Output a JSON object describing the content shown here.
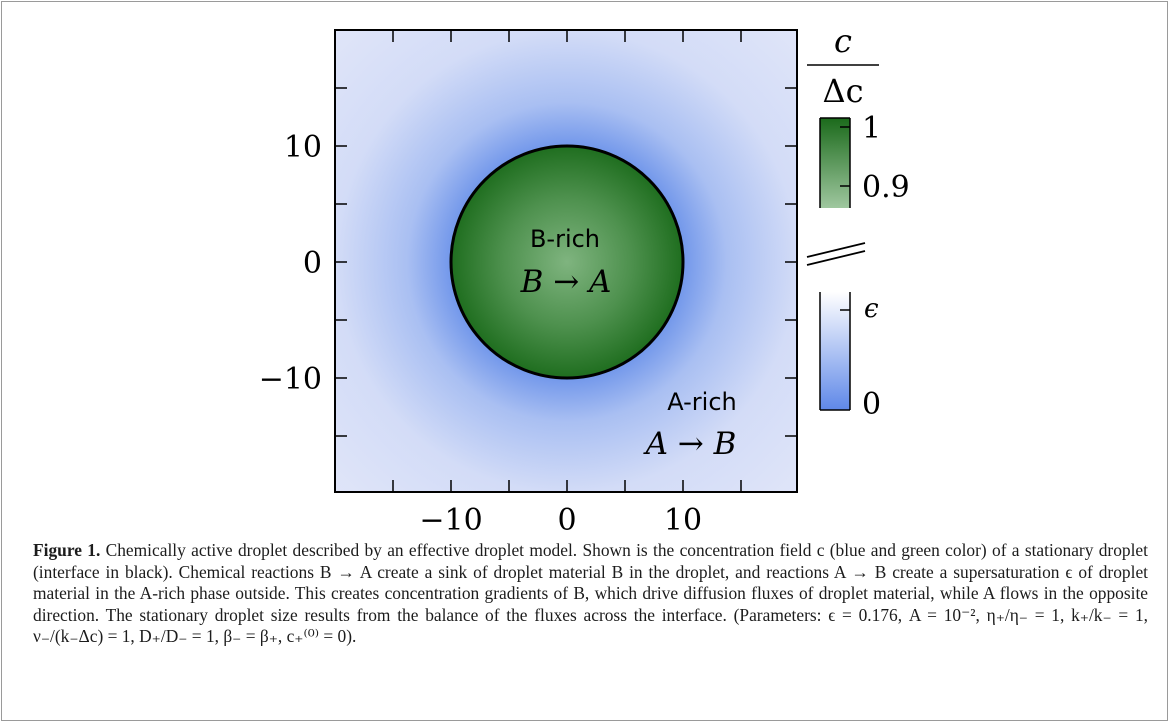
{
  "figure": {
    "label": "Figure 1.",
    "caption": "Chemically active droplet described by an effective droplet model. Shown is the concentration field c (blue and green color) of a stationary droplet (interface in black). Chemical reactions B → A create a sink of droplet material B in the droplet, and reactions A → B create a supersaturation ϵ of droplet material in the A-rich phase outside. This creates concentration gradients of B, which drive diffusion fluxes of droplet material, while A flows in the opposite direction. The stationary droplet size results from the balance of the fluxes across the interface. (Parameters: ϵ = 0.176, A = 10⁻², η₊/η₋ = 1, k₊/k₋ = 1, ν₋/(k₋Δc) = 1, D₊/D₋ = 1, β₋ = β₊, c₊⁽⁰⁾ = 0)."
  },
  "plot": {
    "x_ticks": [
      "−10",
      "0",
      "10"
    ],
    "y_ticks": [
      "10",
      "0",
      "−10"
    ],
    "droplet": {
      "label": "B-rich",
      "reaction": "B → A"
    },
    "outside": {
      "label": "A-rich",
      "reaction": "A → B"
    }
  },
  "colorbar": {
    "title_numerator": "c",
    "title_denominator": "Δc",
    "upper_ticks": [
      "1",
      "0.9"
    ],
    "lower_ticks": [
      "ϵ",
      "0"
    ]
  },
  "colors": {
    "droplet_dark": "#1f6e1f",
    "droplet_light": "#74ad74",
    "field_blue": "#6f95ea",
    "field_pale": "#dfe5fa",
    "interface": "#000000"
  }
}
